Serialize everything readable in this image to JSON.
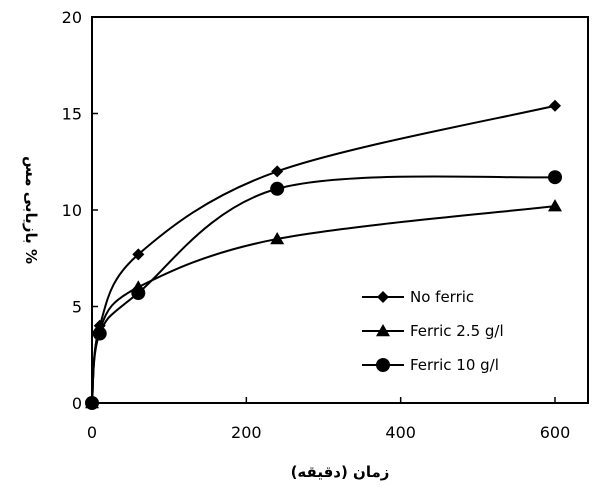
{
  "chart_data": {
    "type": "line",
    "xlabel": "زمان (دقیقه)",
    "ylabel": "% بازیابی مس",
    "xlim": [
      0,
      650
    ],
    "ylim": [
      0,
      20
    ],
    "xticks": [
      "0",
      "200",
      "400",
      "600"
    ],
    "yticks": [
      "0",
      "5",
      "10",
      "15",
      "20"
    ],
    "legend_position": "bottom-right",
    "grid": false,
    "series": [
      {
        "name": "No ferric",
        "marker": "diamond",
        "x": [
          0,
          10,
          60,
          240,
          600
        ],
        "y": [
          0,
          4.0,
          7.7,
          12.0,
          15.4
        ]
      },
      {
        "name": "Ferric 2.5 g/l",
        "marker": "triangle",
        "x": [
          0,
          10,
          60,
          240,
          600
        ],
        "y": [
          0,
          3.8,
          6.0,
          8.5,
          10.2
        ]
      },
      {
        "name": "Ferric 10 g/l",
        "marker": "circle",
        "x": [
          0,
          10,
          60,
          240,
          600
        ],
        "y": [
          0,
          3.6,
          5.7,
          11.1,
          11.7
        ]
      }
    ]
  }
}
